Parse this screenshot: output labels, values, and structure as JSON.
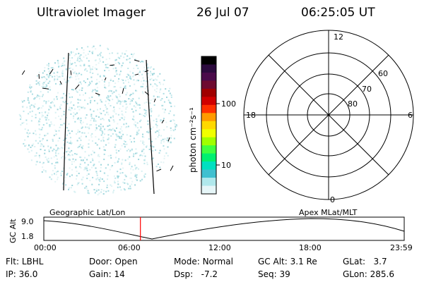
{
  "header": {
    "title": "Ultraviolet Imager",
    "date": "26 Jul 07",
    "time": "06:25:05 UT"
  },
  "colorbar": {
    "unit_label": "photon cm⁻²s⁻¹",
    "ticks": [
      "100",
      "10"
    ],
    "colors": [
      "#000000",
      "#2b0a3d",
      "#4a0a4a",
      "#6e0a30",
      "#a00000",
      "#d00000",
      "#ff3000",
      "#ff9a00",
      "#ffd800",
      "#f0ff00",
      "#a0ff00",
      "#40ff40",
      "#00f070",
      "#00e0c0",
      "#40c0d0",
      "#b0e8ec",
      "#e6f6f8"
    ]
  },
  "polar": {
    "mlt_labels": {
      "top": "12",
      "right": "6",
      "bottom": "0",
      "left": "18"
    },
    "lat_labels": [
      "60",
      "70",
      "80"
    ]
  },
  "timeline": {
    "ylabel": "GC Alt",
    "ymax": "9.0",
    "ymin": "1.8",
    "left_label": "Geographic Lat/Lon",
    "right_label": "Apex MLat/MLT",
    "xticks": [
      "00:00",
      "06:00",
      "12:00",
      "18:00",
      "23:59"
    ],
    "current_time_fraction": 0.268,
    "marker_color": "#ff0000"
  },
  "info": {
    "row1": [
      {
        "key": "Flt:",
        "value": "LBHL"
      },
      {
        "key": "Door:",
        "value": "Open"
      },
      {
        "key": "Mode:",
        "value": "Normal"
      },
      {
        "key": "GC Alt:",
        "value": "3.1 Re"
      },
      {
        "key": "GLat:",
        "value": "3.7"
      }
    ],
    "row2": [
      {
        "key": "IP:",
        "value": "36.0"
      },
      {
        "key": "Gain:",
        "value": "14"
      },
      {
        "key": "Dsp:",
        "value": "-7.2"
      },
      {
        "key": "Seq:",
        "value": "39"
      },
      {
        "key": "GLon:",
        "value": "285.6"
      }
    ]
  }
}
